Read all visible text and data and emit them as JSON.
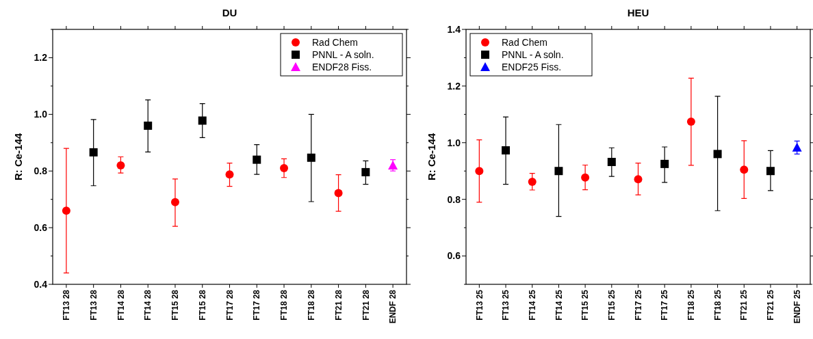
{
  "chart_data": [
    {
      "type": "scatter",
      "title": "DU",
      "ylabel": "R:  Ce-144",
      "categories": [
        "FT13 28",
        "FT13 28",
        "FT14 28",
        "FT14 28",
        "FT15 28",
        "FT15 28",
        "FT17 28",
        "FT17 28",
        "FT18 28",
        "FT18 28",
        "FT21 28",
        "FT21 28",
        "ENDF 28"
      ],
      "ylim": [
        0.4,
        1.3
      ],
      "yticks": [
        0.4,
        {
          "value": 0.5,
          "label": null
        },
        0.6,
        {
          "value": 0.7,
          "label": null
        },
        0.8,
        {
          "value": 0.9,
          "label": null
        },
        {
          "value": 1.0,
          "label": "1.0"
        },
        {
          "value": 1.1,
          "label": null
        },
        1.2,
        {
          "value": 1.3,
          "label": null
        }
      ],
      "legend": "top right",
      "grid": false,
      "series": [
        {
          "name": "Rad Chem",
          "color": "#ff0000",
          "marker": "circle",
          "values": [
            0.66,
            null,
            0.82,
            null,
            0.69,
            null,
            0.788,
            null,
            0.81,
            null,
            0.722,
            null,
            null
          ],
          "errors": [
            [
              0.44,
              0.88
            ],
            null,
            [
              0.793,
              0.85
            ],
            null,
            [
              0.605,
              0.772
            ],
            null,
            [
              0.746,
              0.828
            ],
            null,
            [
              0.777,
              0.843
            ],
            null,
            [
              0.658,
              0.787
            ],
            null,
            null
          ]
        },
        {
          "name": "PNNL - A soln.",
          "color": "#000000",
          "marker": "square",
          "values": [
            null,
            0.866,
            null,
            0.96,
            null,
            0.978,
            null,
            0.84,
            null,
            0.847,
            null,
            0.796,
            null
          ],
          "errors": [
            null,
            [
              0.748,
              0.982
            ],
            null,
            [
              0.867,
              1.051
            ],
            null,
            [
              0.918,
              1.038
            ],
            null,
            [
              0.788,
              0.893
            ],
            null,
            [
              0.692,
              1.0
            ],
            null,
            [
              0.753,
              0.836
            ],
            null
          ]
        },
        {
          "name": "ENDF28 Fiss.",
          "color": "#ff00ff",
          "marker": "triangle",
          "values": [
            null,
            null,
            null,
            null,
            null,
            null,
            null,
            null,
            null,
            null,
            null,
            null,
            0.82
          ],
          "errors": [
            null,
            null,
            null,
            null,
            null,
            null,
            null,
            null,
            null,
            null,
            null,
            null,
            [
              0.8,
              0.84
            ]
          ]
        }
      ]
    },
    {
      "type": "scatter",
      "title": "HEU",
      "ylabel": "R:  Ce-144",
      "categories": [
        "FT13 25",
        "FT13 25",
        "FT14 25",
        "FT14 25",
        "FT15 25",
        "FT15 25",
        "FT17 25",
        "FT17 25",
        "FT18 25",
        "FT18 25",
        "FT21 25",
        "FT21 25",
        "ENDF 25"
      ],
      "ylim": [
        0.5,
        1.4
      ],
      "yticks": [
        {
          "value": 0.5,
          "label": null
        },
        0.6,
        {
          "value": 0.7,
          "label": null
        },
        0.8,
        {
          "value": 0.9,
          "label": null
        },
        {
          "value": 1.0,
          "label": "1.0"
        },
        {
          "value": 1.1,
          "label": null
        },
        1.2,
        {
          "value": 1.3,
          "label": null
        },
        1.4
      ],
      "legend": "top left",
      "grid": false,
      "series": [
        {
          "name": "Rad Chem",
          "color": "#ff0000",
          "marker": "circle",
          "values": [
            0.9,
            null,
            0.862,
            null,
            0.877,
            null,
            0.871,
            null,
            1.074,
            null,
            0.905,
            null,
            null
          ],
          "errors": [
            [
              0.79,
              1.01
            ],
            null,
            [
              0.833,
              0.892
            ],
            null,
            [
              0.834,
              0.921
            ],
            null,
            [
              0.816,
              0.928
            ],
            null,
            [
              0.92,
              1.228
            ],
            null,
            [
              0.803,
              1.007
            ],
            null,
            null
          ]
        },
        {
          "name": "PNNL - A soln.",
          "color": "#000000",
          "marker": "square",
          "values": [
            null,
            0.973,
            null,
            0.9,
            null,
            0.932,
            null,
            0.925,
            null,
            0.96,
            null,
            0.9,
            null
          ],
          "errors": [
            null,
            [
              0.853,
              1.091
            ],
            null,
            [
              0.74,
              1.064
            ],
            null,
            [
              0.881,
              0.982
            ],
            null,
            [
              0.86,
              0.985
            ],
            null,
            [
              0.76,
              1.164
            ],
            null,
            [
              0.831,
              0.972
            ],
            null
          ]
        },
        {
          "name": "ENDF25 Fiss.",
          "color": "#0000ff",
          "marker": "triangle",
          "values": [
            null,
            null,
            null,
            null,
            null,
            null,
            null,
            null,
            null,
            null,
            null,
            null,
            0.983
          ],
          "errors": [
            null,
            null,
            null,
            null,
            null,
            null,
            null,
            null,
            null,
            null,
            null,
            null,
            [
              0.96,
              1.006
            ]
          ]
        }
      ]
    }
  ]
}
